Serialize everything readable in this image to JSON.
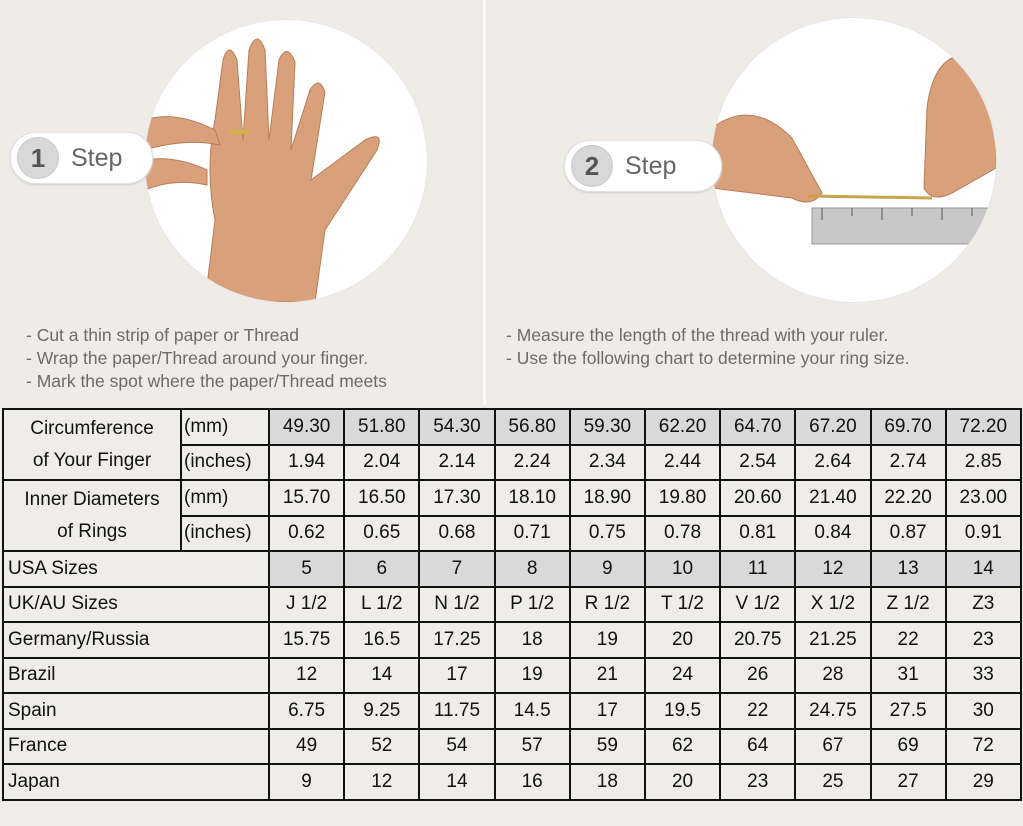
{
  "step1": {
    "number": "1",
    "label": "Step",
    "bullets": [
      "- Cut a thin strip of paper or Thread",
      "- Wrap the paper/Thread around your finger.",
      "- Mark the spot where the paper/Thread meets"
    ]
  },
  "step2": {
    "number": "2",
    "label": "Step",
    "bullets": [
      "- Measure the length of the thread with your ruler.",
      "- Use the following chart to determine your ring size."
    ]
  },
  "colors": {
    "header_gray": "#d9d9d9",
    "background": "#efece8",
    "text": "#6b6b6b"
  },
  "table": {
    "circumference": {
      "label_1": "Circumference",
      "label_2": "of Your Finger",
      "mm_unit": "(mm)",
      "mm": [
        "49.30",
        "51.80",
        "54.30",
        "56.80",
        "59.30",
        "62.20",
        "64.70",
        "67.20",
        "69.70",
        "72.20"
      ],
      "in_unit": "(inches)",
      "in": [
        "1.94",
        "2.04",
        "2.14",
        "2.24",
        "2.34",
        "2.44",
        "2.54",
        "2.64",
        "2.74",
        "2.85"
      ]
    },
    "diameter": {
      "label_1": "Inner Diameters",
      "label_2": "of Rings",
      "mm_unit": "(mm)",
      "mm": [
        "15.70",
        "16.50",
        "17.30",
        "18.10",
        "18.90",
        "19.80",
        "20.60",
        "21.40",
        "22.20",
        "23.00"
      ],
      "in_unit": "(inches)",
      "in": [
        "0.62",
        "0.65",
        "0.68",
        "0.71",
        "0.75",
        "0.78",
        "0.81",
        "0.84",
        "0.87",
        "0.91"
      ]
    },
    "rows": [
      {
        "label": "USA Sizes",
        "values": [
          "5",
          "6",
          "7",
          "8",
          "9",
          "10",
          "11",
          "12",
          "13",
          "14"
        ],
        "gray": true
      },
      {
        "label": "UK/AU Sizes",
        "values": [
          "J 1/2",
          "L 1/2",
          "N 1/2",
          "P 1/2",
          "R 1/2",
          "T 1/2",
          "V 1/2",
          "X 1/2",
          "Z 1/2",
          "Z3"
        ]
      },
      {
        "label": "Germany/Russia",
        "values": [
          "15.75",
          "16.5",
          "17.25",
          "18",
          "19",
          "20",
          "20.75",
          "21.25",
          "22",
          "23"
        ]
      },
      {
        "label": "Brazil",
        "values": [
          "12",
          "14",
          "17",
          "19",
          "21",
          "24",
          "26",
          "28",
          "31",
          "33"
        ]
      },
      {
        "label": "Spain",
        "values": [
          "6.75",
          "9.25",
          "11.75",
          "14.5",
          "17",
          "19.5",
          "22",
          "24.75",
          "27.5",
          "30"
        ]
      },
      {
        "label": "France",
        "values": [
          "49",
          "52",
          "54",
          "57",
          "59",
          "62",
          "64",
          "67",
          "69",
          "72"
        ]
      },
      {
        "label": "Japan",
        "values": [
          "9",
          "12",
          "14",
          "16",
          "18",
          "20",
          "23",
          "25",
          "27",
          "29"
        ]
      }
    ]
  }
}
